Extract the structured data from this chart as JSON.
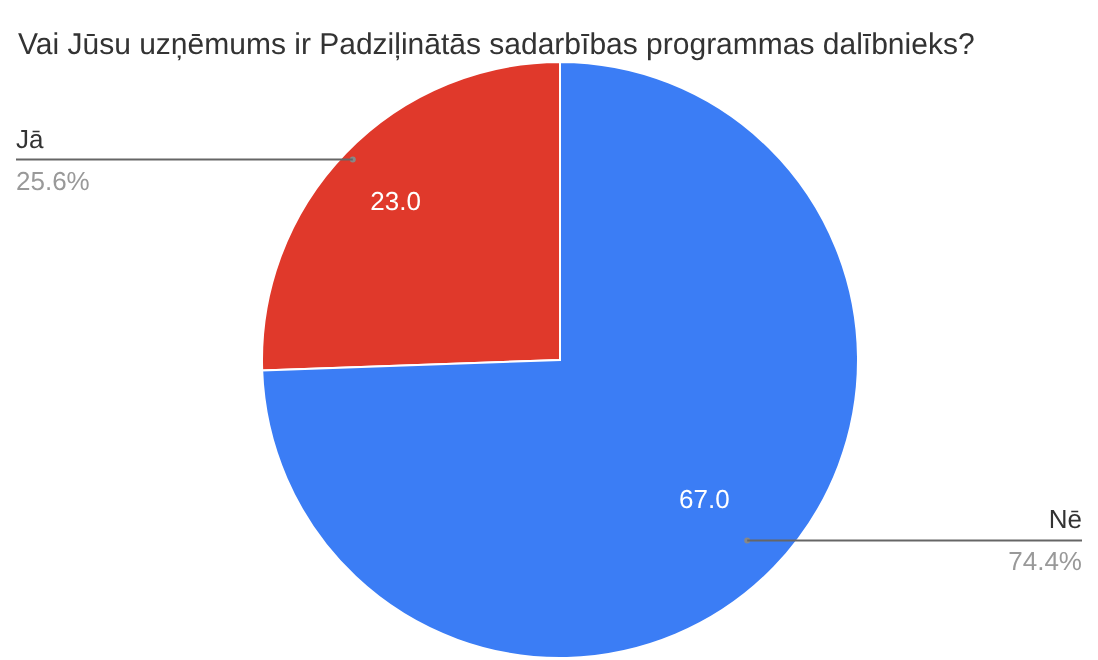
{
  "chart_data": {
    "type": "pie",
    "title": "Vai Jūsu uzņēmums ir Padziļinātās sadarbības programmas dalībnieks?",
    "categories": [
      "Jā",
      "Nē"
    ],
    "values": [
      23.0,
      67.0
    ],
    "colors": [
      "#e0392b",
      "#3b7df5"
    ],
    "value_labels": [
      "23.0",
      "67.0"
    ],
    "annotations": [
      "25.6%",
      "74.4%"
    ]
  }
}
